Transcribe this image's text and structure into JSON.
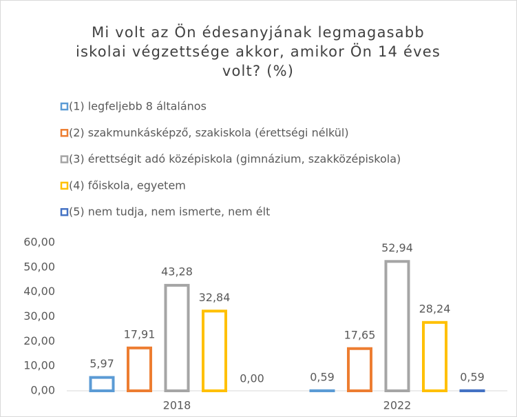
{
  "chart_data": {
    "type": "bar",
    "title": "Mi volt az Ön édesanyjának legmagasabb iskolai végzettsége akkor, amikor Ön 14 éves volt? (%)",
    "categories": [
      "2018",
      "2022"
    ],
    "series": [
      {
        "name": "(1) legfeljebb 8 általános",
        "color": "#5b9bd5",
        "values": [
          5.97,
          0.59
        ],
        "value_labels": [
          "5,97",
          "0,59"
        ]
      },
      {
        "name": "(2) szakmunkásképző, szakiskola (érettségi nélkül)",
        "color": "#ed7d31",
        "values": [
          17.91,
          17.65
        ],
        "value_labels": [
          "17,91",
          "17,65"
        ]
      },
      {
        "name": "(3) érettségit adó középiskola (gimnázium, szakközépiskola)",
        "color": "#a5a5a5",
        "values": [
          43.28,
          52.94
        ],
        "value_labels": [
          "43,28",
          "52,94"
        ]
      },
      {
        "name": "(4) főiskola, egyetem",
        "color": "#ffc000",
        "values": [
          32.84,
          28.24
        ],
        "value_labels": [
          "32,84",
          "28,24"
        ]
      },
      {
        "name": "(5) nem tudja, nem ismerte, nem élt",
        "color": "#4472c4",
        "values": [
          0,
          0.59
        ],
        "value_labels": [
          "0,00",
          "0,59"
        ]
      }
    ],
    "ylim": [
      0,
      60
    ],
    "yticks": [
      {
        "value": 0,
        "label": "0,00"
      },
      {
        "value": 10,
        "label": "10,00"
      },
      {
        "value": 20,
        "label": "20,00"
      },
      {
        "value": 30,
        "label": "30,00"
      },
      {
        "value": 40,
        "label": "40,00"
      },
      {
        "value": 50,
        "label": "50,00"
      },
      {
        "value": 60,
        "label": "60,00"
      }
    ],
    "legend": "top"
  }
}
